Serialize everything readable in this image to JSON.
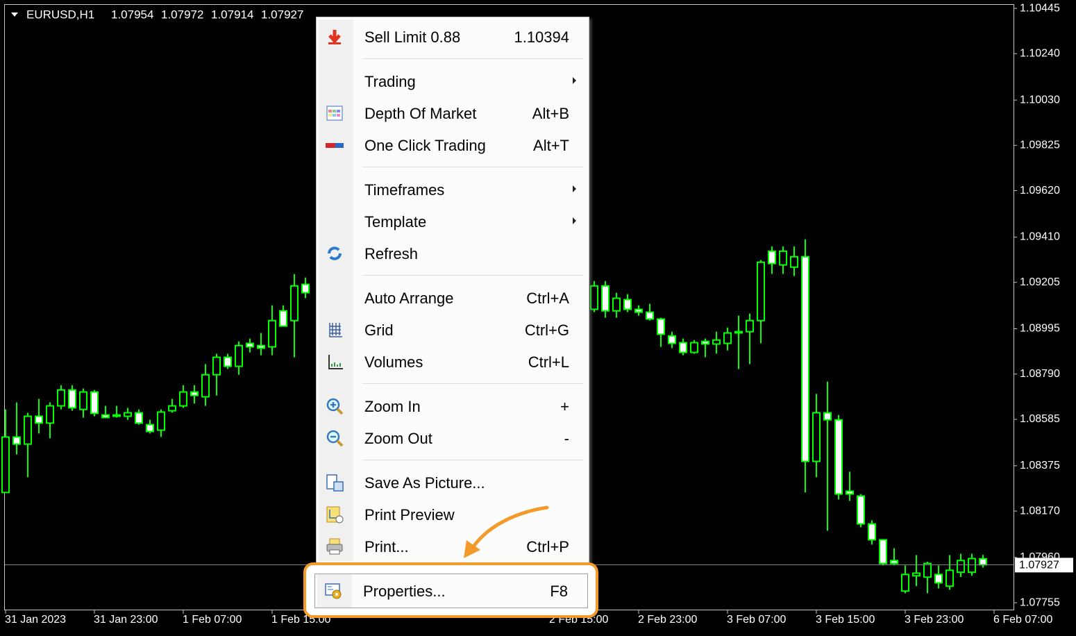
{
  "chart_data": {
    "type": "candlestick",
    "title": "EURUSD,H1",
    "quote": [
      1.07954,
      1.07972,
      1.07914,
      1.07927
    ],
    "categories": [
      "31 Jan 2023",
      null,
      null,
      null,
      null,
      null,
      null,
      null,
      "31 Jan 23:00",
      null,
      null,
      null,
      null,
      null,
      null,
      null,
      "1 Feb 07:00",
      null,
      null,
      null,
      null,
      null,
      null,
      null,
      "1 Feb 15:00",
      null,
      null,
      null,
      null,
      null,
      null,
      null,
      null,
      null,
      null,
      null,
      null,
      null,
      null,
      null,
      null,
      null,
      null,
      null,
      null,
      null,
      null,
      null,
      null,
      "2 Feb 15:00",
      null,
      null,
      null,
      null,
      null,
      null,
      null,
      "2 Feb 23:00",
      null,
      null,
      null,
      null,
      null,
      null,
      null,
      "3 Feb 07:00",
      null,
      null,
      null,
      null,
      null,
      null,
      null,
      "3 Feb 15:00",
      null,
      null,
      null,
      null,
      null,
      null,
      null,
      "3 Feb 23:00",
      null,
      null,
      null,
      null,
      null,
      null,
      null,
      "6 Feb 07:00"
    ],
    "candles": [
      [
        1.08254,
        1.0863,
        1.08254,
        1.08505
      ],
      [
        1.08505,
        1.08662,
        1.08426,
        1.08473
      ],
      [
        1.08473,
        1.08615,
        1.08323,
        1.08599
      ],
      [
        1.08599,
        1.08678,
        1.08521,
        1.08568
      ],
      [
        1.08568,
        1.08662,
        1.08499,
        1.08646
      ],
      [
        1.08646,
        1.0874,
        1.0863,
        1.08718
      ],
      [
        1.08718,
        1.0874,
        1.08624,
        1.08637
      ],
      [
        1.0863,
        1.08725,
        1.08593,
        1.08709
      ],
      [
        1.08709,
        1.08718,
        1.08599,
        1.08612
      ],
      [
        1.08605,
        1.08646,
        1.08593,
        1.08593
      ],
      [
        1.08605,
        1.08646,
        1.08593,
        1.08599
      ],
      [
        1.08599,
        1.08637,
        1.08583,
        1.08615
      ],
      [
        1.08615,
        1.0863,
        1.08561,
        1.08568
      ],
      [
        1.08561,
        1.08583,
        1.08521,
        1.0853
      ],
      [
        1.08536,
        1.0863,
        1.08505,
        1.08618
      ],
      [
        1.08624,
        1.08678,
        1.08615,
        1.08646
      ],
      [
        1.08646,
        1.0874,
        1.08637,
        1.08709
      ],
      [
        1.08709,
        1.0874,
        1.08656,
        1.08693
      ],
      [
        1.08687,
        1.08835,
        1.08646,
        1.08787
      ],
      [
        1.08787,
        1.08882,
        1.08693,
        1.08866
      ],
      [
        1.08866,
        1.08882,
        1.08813,
        1.08825
      ],
      [
        1.08825,
        1.08938,
        1.08787,
        1.08919
      ],
      [
        1.08929,
        1.08951,
        1.08888,
        1.08913
      ],
      [
        1.08919,
        1.08976,
        1.08875,
        1.08907
      ],
      [
        1.08913,
        1.09101,
        1.08875,
        1.09032
      ],
      [
        1.09076,
        1.09101,
        1.09007,
        1.09007
      ],
      [
        1.09032,
        1.09243,
        1.08866,
        1.09189
      ],
      [
        1.09196,
        1.09227,
        1.09133,
        1.09158
      ],
      null,
      null,
      null,
      null,
      null,
      null,
      null,
      null,
      null,
      null,
      null,
      null,
      null,
      null,
      null,
      null,
      null,
      null,
      null,
      null,
      null,
      null,
      null,
      null,
      null,
      [
        1.09083,
        1.09211,
        1.0907,
        1.09189
      ],
      [
        1.09189,
        1.09211,
        1.09045,
        1.09076
      ],
      [
        1.09076,
        1.09158,
        1.09045,
        1.09133
      ],
      [
        1.09127,
        1.09152,
        1.0907,
        1.09083
      ],
      [
        1.09083,
        1.09101,
        1.09054,
        1.0907
      ],
      [
        1.0907,
        1.09108,
        1.09032,
        1.09039
      ],
      [
        1.09039,
        1.09045,
        1.08913,
        1.0897
      ],
      [
        1.08963,
        1.08982,
        1.08907,
        1.08929
      ],
      [
        1.08932,
        1.08951,
        1.08875,
        1.08888
      ],
      [
        1.08888,
        1.08944,
        1.08882,
        1.08932
      ],
      [
        1.08938,
        1.08951,
        1.08866,
        1.08926
      ],
      [
        1.08926,
        1.08982,
        1.08882,
        1.08944
      ],
      [
        1.08929,
        1.09001,
        1.08897,
        1.08976
      ],
      [
        1.08976,
        1.09054,
        1.08813,
        1.08982
      ],
      [
        1.08982,
        1.09064,
        1.08835,
        1.09032
      ],
      [
        1.09032,
        1.09306,
        1.08929,
        1.09296
      ],
      [
        1.09346,
        1.09368,
        1.09243,
        1.0929
      ],
      [
        1.09284,
        1.09368,
        1.09243,
        1.09346
      ],
      [
        1.09274,
        1.09368,
        1.09233,
        1.09321
      ],
      [
        1.09321,
        1.094,
        1.08254,
        1.08395
      ],
      [
        1.08395,
        1.087,
        1.08323,
        1.08615
      ],
      [
        1.08615,
        1.08756,
        1.08081,
        1.08583
      ],
      [
        1.08583,
        1.08605,
        1.08222,
        1.08247
      ],
      [
        1.0826,
        1.08348,
        1.08216,
        1.08247
      ],
      [
        1.08238,
        1.08247,
        1.08097,
        1.08112
      ],
      [
        1.08112,
        1.08128,
        1.08018,
        1.0804
      ],
      [
        1.0804,
        1.0804,
        1.07924,
        1.07933
      ],
      [
        1.07946,
        1.08002,
        1.07924,
        1.07933
      ],
      [
        1.07808,
        1.07924,
        1.07798,
        1.07883
      ],
      [
        1.07877,
        1.07971,
        1.0783,
        1.07889
      ],
      [
        1.07871,
        1.0794,
        1.07798,
        1.07933
      ],
      [
        1.07883,
        1.07924,
        1.0782,
        1.07845
      ],
      [
        1.0783,
        1.07971,
        1.07814,
        1.07902
      ],
      [
        1.07893,
        1.07977,
        1.07871,
        1.07946
      ],
      [
        1.07893,
        1.07977,
        1.07877,
        1.07955
      ],
      [
        1.07954,
        1.07972,
        1.07914,
        1.07927
      ]
    ],
    "bull_color": "#000000",
    "bear_color": "#ffffff",
    "wick_color": "#00ff00",
    "ylim": [
      1.07724,
      1.10464
    ],
    "yticks": [
      1.10445,
      {
        "value": 1.1024,
        "label": "1.10240"
      },
      {
        "value": 1.1003,
        "label": "1.10030"
      },
      1.09825,
      {
        "value": 1.0962,
        "label": "1.09620"
      },
      {
        "value": 1.0941,
        "label": "1.09410"
      },
      1.09205,
      1.08995,
      {
        "value": 1.0879,
        "label": "1.08790"
      },
      1.08585,
      1.08375,
      {
        "value": 1.0817,
        "label": "1.08170"
      },
      {
        "value": 1.0796,
        "label": "1.07960"
      },
      1.07755
    ],
    "last_price": 1.07927
  },
  "context_menu": {
    "groups": [
      [
        {
          "label": "Sell Limit 0.88",
          "shortcut": 1.10394
        }
      ],
      [
        {
          "label": "Trading",
          "submenu": true
        },
        {
          "label": "Depth Of Market",
          "shortcut": "Alt+B"
        },
        {
          "label": "One Click Trading",
          "shortcut": "Alt+T"
        }
      ],
      [
        {
          "label": "Timeframes",
          "submenu": true
        },
        {
          "label": "Template",
          "submenu": true
        },
        {
          "label": "Refresh"
        }
      ],
      [
        {
          "label": "Auto Arrange",
          "shortcut": "Ctrl+A"
        },
        {
          "label": "Grid",
          "shortcut": "Ctrl+G"
        },
        {
          "label": "Volumes",
          "shortcut": "Ctrl+L"
        }
      ],
      [
        {
          "label": "Zoom In",
          "shortcut": "+"
        },
        {
          "label": "Zoom Out",
          "shortcut": "-"
        }
      ],
      [
        {
          "label": "Save As Picture..."
        },
        {
          "label": "Print Preview"
        },
        {
          "label": "Print...",
          "shortcut": "Ctrl+P"
        }
      ]
    ],
    "highlighted": {
      "label": "Properties...",
      "shortcut": "F8"
    }
  }
}
